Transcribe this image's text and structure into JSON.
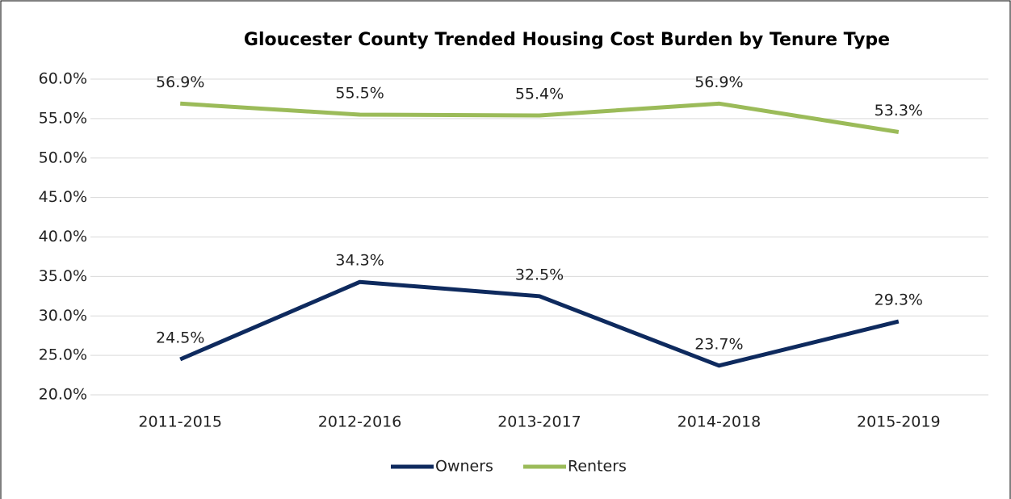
{
  "chart_data": {
    "type": "line",
    "title": "Gloucester County Trended Housing Cost Burden by Tenure Type",
    "categories": [
      "2011-2015",
      "2012-2016",
      "2013-2017",
      "2014-2018",
      "2015-2019"
    ],
    "series": [
      {
        "name": "Owners",
        "color": "#0e2a5e",
        "values": [
          24.5,
          34.3,
          32.5,
          23.7,
          29.3
        ],
        "value_labels": [
          "24.5%",
          "34.3%",
          "32.5%",
          "23.7%",
          "29.3%"
        ]
      },
      {
        "name": "Renters",
        "color": "#9bbb59",
        "values": [
          56.9,
          55.5,
          55.4,
          56.9,
          53.3
        ],
        "value_labels": [
          "56.9%",
          "55.5%",
          "55.4%",
          "56.9%",
          "53.3%"
        ]
      }
    ],
    "ylim": [
      20,
      60
    ],
    "yticks": [
      {
        "value": 20,
        "label": "20.0%"
      },
      {
        "value": 25,
        "label": "25.0%"
      },
      {
        "value": 30,
        "label": "30.0%"
      },
      {
        "value": 35,
        "label": "35.0%"
      },
      {
        "value": 40,
        "label": "40.0%"
      },
      {
        "value": 45,
        "label": "45.0%"
      },
      {
        "value": 50,
        "label": "50.0%"
      },
      {
        "value": 55,
        "label": "55.0%"
      },
      {
        "value": 60,
        "label": "60.0%"
      }
    ],
    "grid": true,
    "legend": "bottom"
  }
}
